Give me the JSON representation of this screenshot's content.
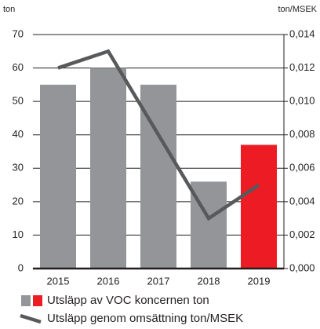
{
  "chart_data": {
    "type": "bar",
    "ylabel": "ton",
    "y2label": "ton/MSEK",
    "categories": [
      "2015",
      "2016",
      "2017",
      "2018",
      "2019"
    ],
    "series": [
      {
        "name": "Utsläpp av VOC koncernen ton",
        "type": "bar",
        "color": "#939598",
        "colors": [
          "#939598",
          "#939598",
          "#939598",
          "#939598",
          "#ed1c24"
        ],
        "values": [
          55,
          60,
          55,
          26,
          37
        ]
      },
      {
        "name": "Utsläpp genom omsättning ton/MSEK",
        "type": "line",
        "axis": "y2",
        "color": "#58595b",
        "values": [
          0.012,
          0.013,
          0.008,
          0.003,
          0.005
        ]
      }
    ],
    "ylim": [
      0,
      70
    ],
    "yticks": [
      0,
      10,
      20,
      30,
      40,
      50,
      60,
      70
    ],
    "y2lim": [
      0,
      0.014
    ],
    "y2ticks": [
      {
        "value": 0,
        "label": "0,000"
      },
      {
        "value": 0.002,
        "label": "0,002"
      },
      {
        "value": 0.004,
        "label": "0,004"
      },
      {
        "value": 0.006,
        "label": "0,006"
      },
      {
        "value": 0.008,
        "label": "0,008"
      },
      {
        "value": 0.01,
        "label": "0,010"
      },
      {
        "value": 0.012,
        "label": "0,012"
      },
      {
        "value": 0.014,
        "label": "0,014"
      }
    ],
    "grid": true
  }
}
